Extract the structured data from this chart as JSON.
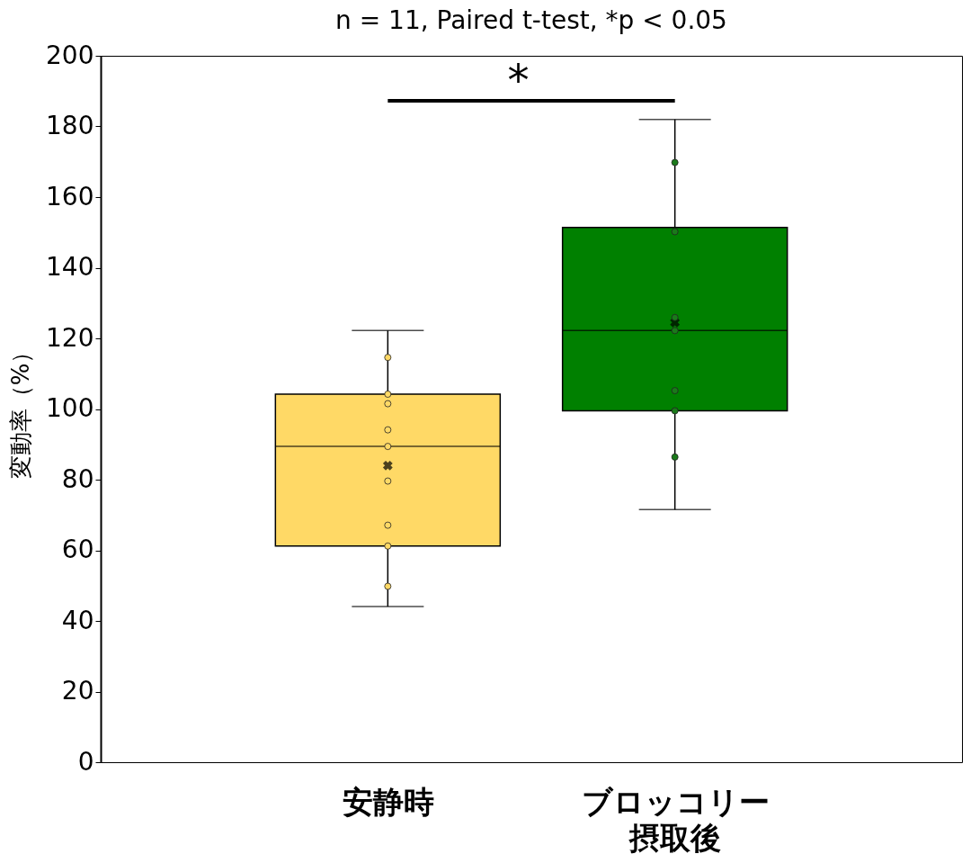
{
  "chart_data": {
    "type": "box",
    "title": "n = 11, Paired t-test, *p < 0.05",
    "ylabel": "変動率（%）",
    "categories": [
      "安静時",
      "ブロッコリー摂取後"
    ],
    "colors": [
      "#ffd966",
      "#008000"
    ],
    "boxes": [
      {
        "low": 44.1,
        "q1": 61.2,
        "median": 89.4,
        "q3": 104.2,
        "high": 122.2,
        "mean": 84.0
      },
      {
        "low": 71.5,
        "q1": 99.5,
        "median": 122.2,
        "q3": 151.4,
        "high": 182,
        "mean": 124.5
      }
    ],
    "series": [
      {
        "type": "scatter",
        "color": "#ffd966",
        "x": [
          "安静時",
          "安静時",
          "安静時",
          "安静時",
          "安静時",
          "安静時",
          "安静時",
          "安静時",
          "安静時"
        ],
        "values": [
          114.6,
          104.2,
          101.5,
          94.1,
          89.4,
          79.6,
          67.1,
          61.2,
          49.8
        ]
      },
      {
        "type": "scatter",
        "color": "#1a7a1a",
        "x": [
          "ブロッコリー摂取後",
          "ブロッコリー摂取後",
          "ブロッコリー摂取後",
          "ブロッコリー摂取後",
          "ブロッコリー摂取後",
          "ブロッコリー摂取後",
          "ブロッコリー摂取後"
        ],
        "values": [
          169.8,
          150.2,
          125.9,
          122.2,
          105.2,
          99.5,
          86.4
        ]
      }
    ],
    "annotations": [
      "*"
    ],
    "ylim": [
      0,
      200
    ],
    "yticks": [
      0,
      20,
      40,
      60,
      80,
      100,
      120,
      140,
      160,
      180,
      200
    ],
    "grid": false,
    "marker": "circle"
  }
}
